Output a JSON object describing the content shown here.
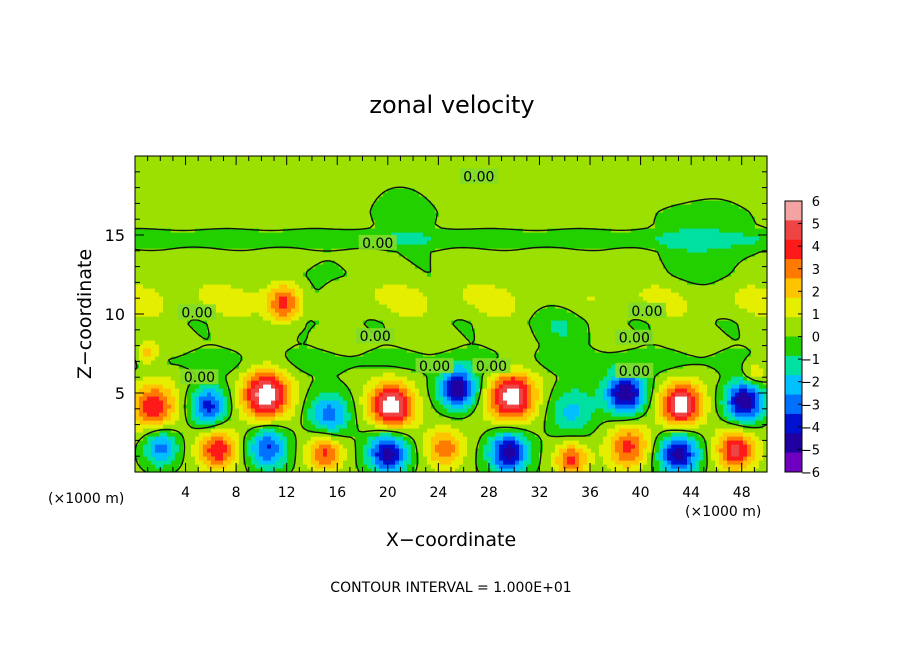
{
  "chart_data": {
    "type": "heatmap",
    "title": "zonal velocity",
    "xlabel": "X−coordinate",
    "ylabel": "Z−coordinate",
    "x_unit_left": "(×1000 m)",
    "x_unit_right": "(×1000 m)",
    "xlim": [
      0,
      50
    ],
    "ylim": [
      0,
      20
    ],
    "x_ticks": [
      4,
      8,
      12,
      16,
      20,
      24,
      28,
      32,
      36,
      40,
      44,
      48
    ],
    "x_tick_labels": [
      "4",
      "8",
      "12",
      "16",
      "20",
      "24",
      "28",
      "32",
      "36",
      "40",
      "44",
      "48"
    ],
    "y_ticks": [
      5,
      10,
      15
    ],
    "y_tick_labels": [
      "5",
      "10",
      "15"
    ],
    "footnote": "CONTOUR INTERVAL = 1.000E+01",
    "colorbar": {
      "levels": [
        6,
        5,
        4,
        3,
        2,
        1,
        0,
        -1,
        -2,
        -3,
        -4,
        -5,
        -6
      ],
      "labels": [
        "6",
        "5",
        "4",
        "3",
        "2",
        "1",
        "0",
        "−1",
        "−2",
        "−3",
        "−4",
        "−5",
        "−6"
      ],
      "colors": [
        "#f4a3a3",
        "#ee4444",
        "#ff1a1a",
        "#ff7a00",
        "#ffc400",
        "#e6ee00",
        "#9be000",
        "#22d000",
        "#00e0a0",
        "#00c0ff",
        "#0070ff",
        "#0010d0",
        "#2000a0",
        "#7000c0"
      ]
    },
    "contour_labels": [
      {
        "text": "0.00",
        "x": 27.2,
        "y": 18.7
      },
      {
        "text": "0.00",
        "x": 19.2,
        "y": 14.5
      },
      {
        "text": "0.00",
        "x": 4.9,
        "y": 10.1
      },
      {
        "text": "0.00",
        "x": 40.5,
        "y": 10.2
      },
      {
        "text": "0.00",
        "x": 19.0,
        "y": 8.6
      },
      {
        "text": "0.00",
        "x": 39.5,
        "y": 8.5
      },
      {
        "text": "0.00",
        "x": 23.7,
        "y": 6.7
      },
      {
        "text": "0.00",
        "x": 28.2,
        "y": 6.7
      },
      {
        "text": "0.00",
        "x": 39.5,
        "y": 6.4
      },
      {
        "text": "0.00",
        "x": 5.1,
        "y": 6.0
      }
    ],
    "field": {
      "background": 0.3,
      "bands": [
        {
          "y0": 0.5,
          "y1": 6.0,
          "value": 0.2
        },
        {
          "y0": 6.0,
          "y1": 8.0,
          "value": -0.6
        },
        {
          "y0": 9.5,
          "y1": 12.5,
          "value": 0.8
        },
        {
          "y0": 14.0,
          "y1": 15.5,
          "value": -1.0
        },
        {
          "y0": 16.5,
          "y1": 20.0,
          "value": 0.2
        }
      ],
      "blobs": [
        {
          "x": 1.5,
          "y": 4.2,
          "r": 1.6,
          "v": 4.5
        },
        {
          "x": 5.8,
          "y": 4.2,
          "r": 1.4,
          "v": -5
        },
        {
          "x": 10.3,
          "y": 4.9,
          "r": 1.7,
          "v": 6.5
        },
        {
          "x": 15.3,
          "y": 3.6,
          "r": 1.6,
          "v": -4
        },
        {
          "x": 20.3,
          "y": 4.2,
          "r": 1.6,
          "v": 6.5
        },
        {
          "x": 25.5,
          "y": 5.3,
          "r": 1.4,
          "v": -6.5
        },
        {
          "x": 29.8,
          "y": 4.8,
          "r": 1.7,
          "v": 6.5
        },
        {
          "x": 34.5,
          "y": 3.8,
          "r": 1.8,
          "v": -2.8
        },
        {
          "x": 38.8,
          "y": 5.0,
          "r": 1.5,
          "v": -6.5
        },
        {
          "x": 43.2,
          "y": 4.3,
          "r": 1.5,
          "v": 6.5
        },
        {
          "x": 48.2,
          "y": 4.5,
          "r": 1.5,
          "v": -6.5
        },
        {
          "x": 2.0,
          "y": 1.6,
          "r": 1.3,
          "v": -4
        },
        {
          "x": 6.5,
          "y": 1.4,
          "r": 1.4,
          "v": 4.5
        },
        {
          "x": 10.5,
          "y": 1.6,
          "r": 1.5,
          "v": -4.5
        },
        {
          "x": 15.0,
          "y": 1.3,
          "r": 1.3,
          "v": 4
        },
        {
          "x": 20.0,
          "y": 1.3,
          "r": 1.5,
          "v": -6
        },
        {
          "x": 24.5,
          "y": 1.5,
          "r": 1.3,
          "v": 3.5
        },
        {
          "x": 29.5,
          "y": 1.3,
          "r": 1.5,
          "v": -6
        },
        {
          "x": 34.5,
          "y": 0.8,
          "r": 1.2,
          "v": 4
        },
        {
          "x": 39.0,
          "y": 1.6,
          "r": 1.5,
          "v": 4
        },
        {
          "x": 43.0,
          "y": 1.2,
          "r": 1.5,
          "v": -6
        },
        {
          "x": 47.5,
          "y": 1.4,
          "r": 1.4,
          "v": 5
        },
        {
          "x": 11.8,
          "y": 10.6,
          "r": 1.3,
          "v": 4
        },
        {
          "x": 1.0,
          "y": 7.5,
          "r": 0.8,
          "v": 2.5
        },
        {
          "x": 49.0,
          "y": 6.3,
          "r": 1.0,
          "v": 2.5
        },
        {
          "x": 14.0,
          "y": 11.0,
          "r": 1.8,
          "v": -1.5
        },
        {
          "x": 34.0,
          "y": 9.5,
          "r": 2.2,
          "v": -1.2
        },
        {
          "x": 45.0,
          "y": 14.5,
          "r": 3.0,
          "v": -1.3
        },
        {
          "x": 21.5,
          "y": 16.5,
          "r": 3.0,
          "v": -0.7
        }
      ]
    }
  }
}
